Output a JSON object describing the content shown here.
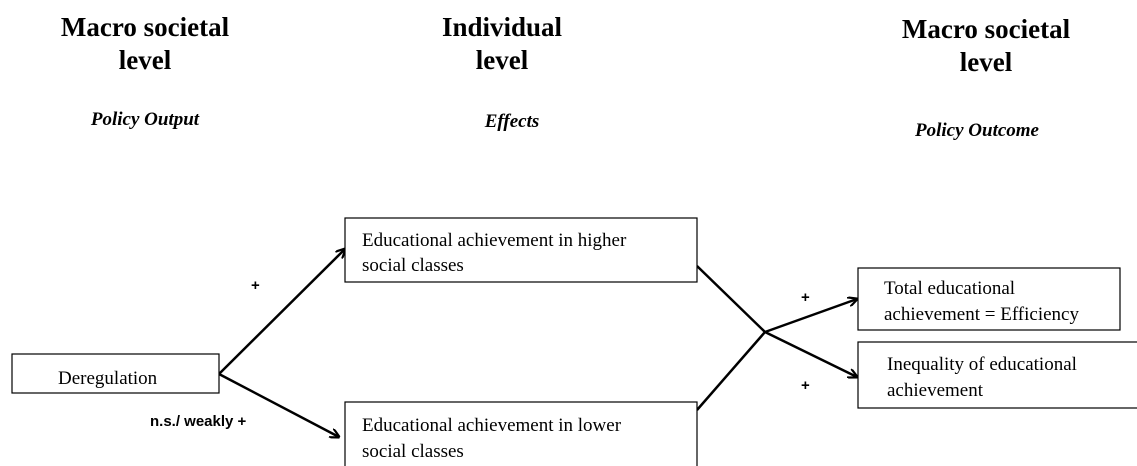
{
  "columns": [
    {
      "title_lines": [
        "Macro societal",
        "level"
      ],
      "subtitle": "Policy Output"
    },
    {
      "title_lines": [
        "Individual",
        "level"
      ],
      "subtitle": "Effects"
    },
    {
      "title_lines": [
        "Macro societal",
        "level"
      ],
      "subtitle": "Policy Outcome"
    }
  ],
  "nodes": [
    {
      "lines": [
        "Deregulation"
      ]
    },
    {
      "lines": [
        "Educational achievement in higher",
        "social classes"
      ]
    },
    {
      "lines": [
        "Educational achievement in lower",
        "social classes"
      ]
    },
    {
      "lines": [
        "Total educational",
        "achievement = Efficiency"
      ]
    },
    {
      "lines": [
        "Inequality of educational",
        "achievement"
      ]
    }
  ],
  "edge_labels": [
    "+",
    "n.s./ weakly +",
    "+",
    "+"
  ]
}
